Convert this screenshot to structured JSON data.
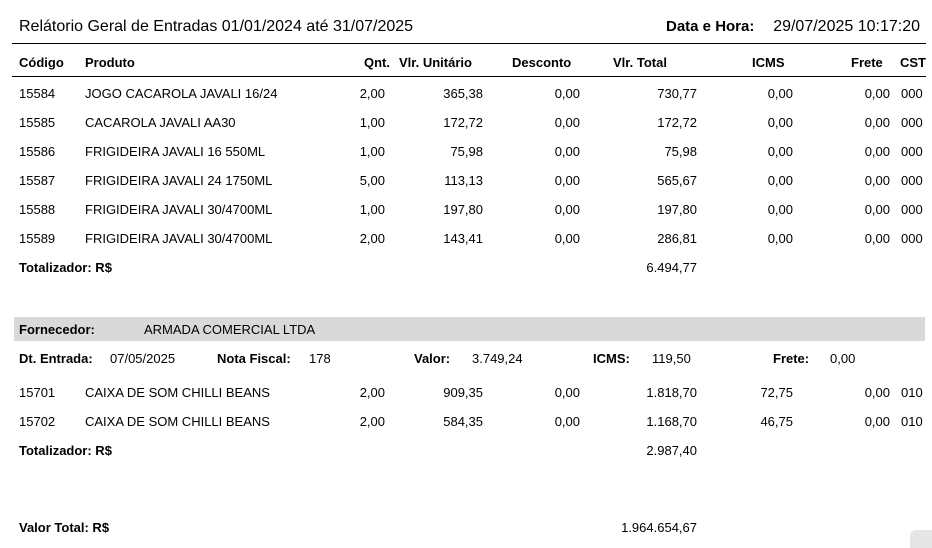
{
  "report": {
    "title": "Relátorio Geral de Entradas 01/01/2024 até 31/07/2025",
    "datetime_label": "Data e Hora:",
    "datetime_value": "29/07/2025 10:17:20"
  },
  "columns": {
    "codigo": "Código",
    "produto": "Produto",
    "qnt": "Qnt.",
    "vlr_unitario": "Vlr. Unitário",
    "desconto": "Desconto",
    "vlr_total": "Vlr. Total",
    "icms": "ICMS",
    "frete": "Frete",
    "cst": "CST"
  },
  "group1": {
    "rows": [
      {
        "codigo": "15584",
        "produto": "JOGO CACAROLA JAVALI 16/24",
        "qnt": "2,00",
        "unit": "365,38",
        "desc": "0,00",
        "total": "730,77",
        "icms": "0,00",
        "frete": "0,00",
        "cst": "000"
      },
      {
        "codigo": "15585",
        "produto": "CACAROLA JAVALI AA30",
        "qnt": "1,00",
        "unit": "172,72",
        "desc": "0,00",
        "total": "172,72",
        "icms": "0,00",
        "frete": "0,00",
        "cst": "000"
      },
      {
        "codigo": "15586",
        "produto": "FRIGIDEIRA JAVALI 16 550ML",
        "qnt": "1,00",
        "unit": "75,98",
        "desc": "0,00",
        "total": "75,98",
        "icms": "0,00",
        "frete": "0,00",
        "cst": "000"
      },
      {
        "codigo": "15587",
        "produto": "FRIGIDEIRA JAVALI  24 1750ML",
        "qnt": "5,00",
        "unit": "113,13",
        "desc": "0,00",
        "total": "565,67",
        "icms": "0,00",
        "frete": "0,00",
        "cst": "000"
      },
      {
        "codigo": "15588",
        "produto": "FRIGIDEIRA JAVALI 30/4700ML",
        "qnt": "1,00",
        "unit": "197,80",
        "desc": "0,00",
        "total": "197,80",
        "icms": "0,00",
        "frete": "0,00",
        "cst": "000"
      },
      {
        "codigo": "15589",
        "produto": "FRIGIDEIRA JAVALI 30/4700ML",
        "qnt": "2,00",
        "unit": "143,41",
        "desc": "0,00",
        "total": "286,81",
        "icms": "0,00",
        "frete": "0,00",
        "cst": "000"
      }
    ],
    "totalizer_label": "Totalizador: R$",
    "totalizer_value": "6.494,77"
  },
  "group2": {
    "fornecedor_label": "Fornecedor:",
    "fornecedor_value": "ARMADA COMERCIAL LTDA",
    "entrada_label": "Dt. Entrada:",
    "entrada_value": "07/05/2025",
    "nota_label": "Nota Fiscal:",
    "nota_value": "178",
    "valor_label": "Valor:",
    "valor_value": "3.749,24",
    "icms_label": "ICMS:",
    "icms_value": "119,50",
    "frete_label": "Frete:",
    "frete_value": "0,00",
    "rows": [
      {
        "codigo": "15701",
        "produto": "CAIXA DE SOM CHILLI BEANS",
        "qnt": "2,00",
        "unit": "909,35",
        "desc": "0,00",
        "total": "1.818,70",
        "icms": "72,75",
        "frete": "0,00",
        "cst": "010"
      },
      {
        "codigo": "15702",
        "produto": "CAIXA DE SOM CHILLI BEANS",
        "qnt": "2,00",
        "unit": "584,35",
        "desc": "0,00",
        "total": "1.168,70",
        "icms": "46,75",
        "frete": "0,00",
        "cst": "010"
      }
    ],
    "totalizer_label": "Totalizador: R$",
    "totalizer_value": "2.987,40"
  },
  "grand_total": {
    "label": "Valor Total: R$",
    "value": "1.964.654,67"
  }
}
